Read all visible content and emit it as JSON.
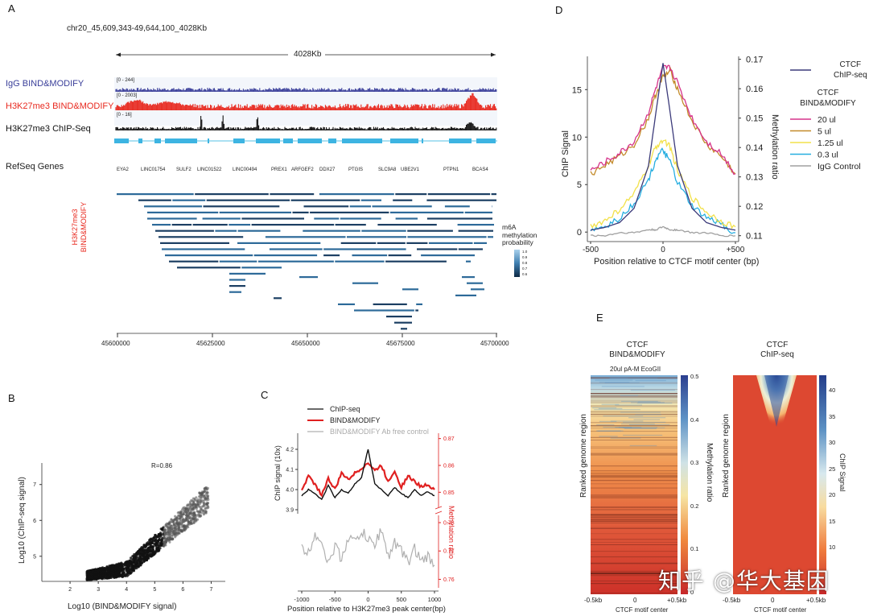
{
  "panels": {
    "A": {
      "letter": "A",
      "region": "chr20_45,609,343-49,644,100_4028Kb",
      "span_label": "4028Kb",
      "tracks": [
        {
          "label": "IgG BIND&MODIFY",
          "color": "#3a3f9a",
          "scale": "[0 - 244]"
        },
        {
          "label": "H3K27me3 BIND&MODIFY",
          "color": "#e8281e",
          "scale": "[0 - 2003]"
        },
        {
          "label": "H3K27me3 ChIP-Seq",
          "color": "#111111",
          "scale": "[0 - 16]"
        }
      ],
      "refseq_label": "RefSeq Genes",
      "genes": [
        "EYA2",
        "LINC01754",
        "SULF2",
        "LINC01522",
        "LINC00494",
        "PREX1",
        "ARFGEF2",
        "DDX27",
        "PTGIS",
        "SLC9A8",
        "UBE2V1",
        "PTPN1",
        "BCAS4"
      ],
      "reads_label_line1": "H3K27me3",
      "reads_label_line2": "BIND&MODIFY",
      "legend_title": [
        "m6A",
        "methylation",
        "probability"
      ],
      "legend_ticks": [
        "1.0",
        "0.9",
        "0.8",
        "0.7",
        "0.6"
      ],
      "axis_ticks": [
        "45600000",
        "45625000",
        "45650000",
        "45675000",
        "45700000"
      ]
    },
    "B": {
      "letter": "B",
      "r_label": "R=0.86",
      "xlabel": "Log10 (BIND&MODIFY signal)",
      "ylabel": "Log10 (ChIP-seq signal)"
    },
    "C": {
      "letter": "C",
      "xlabel": "Position relative to H3K27me3 peak center(bp)",
      "ylabel_left": "ChIP signal (10x)",
      "ylabel_right": "Methylation ratio"
    },
    "D": {
      "letter": "D",
      "xlabel": "Position relative to CTCF motif center (bp)",
      "ylabel_left": "ChIP Signal",
      "ylabel_right": "Methylation ratio",
      "legend_chip_title": [
        "CTCF",
        "ChIP-seq"
      ],
      "legend_bm_title": [
        "CTCF",
        "BIND&MODIFY"
      ]
    },
    "E": {
      "letter": "E",
      "left_title": [
        "CTCF",
        "BIND&MODIFY"
      ],
      "left_subtitle": "20ul pA-M EcoGII",
      "left_ylabel": "Ranked genome region",
      "left_cbar_label": "Methylation ratio",
      "left_cbar_ticks": [
        "0.5",
        "0.4",
        "0.3",
        "0.2",
        "0.1",
        "0"
      ],
      "right_title": [
        "CTCF",
        "ChIP-seq"
      ],
      "right_ylabel": "Ranked genome region",
      "right_cbar_label": "ChIP Signal",
      "right_cbar_ticks": [
        "40",
        "35",
        "30",
        "25",
        "20",
        "15",
        "10"
      ],
      "xticks": [
        "-0.5kb",
        "0",
        "+0.5kb"
      ],
      "xlabel": "CTCF motif center"
    }
  },
  "watermark": "知乎 @华大基因",
  "chart_data": [
    {
      "id": "B",
      "type": "scatter",
      "title": "",
      "xlabel": "Log10 (BIND&MODIFY signal)",
      "ylabel": "Log10 (ChIP-seq signal)",
      "xlim": [
        1,
        7.5
      ],
      "ylim": [
        4.3,
        7.6
      ],
      "xticks": [
        2,
        3,
        4,
        5,
        6,
        7
      ],
      "yticks": [
        5,
        6,
        7
      ],
      "annotation": "R=0.86",
      "trend": {
        "x": [
          2.5,
          3.5,
          4.5,
          5.5,
          6.5
        ],
        "y": [
          4.55,
          4.7,
          5.05,
          5.7,
          6.6
        ]
      }
    },
    {
      "id": "C",
      "type": "line",
      "xlabel": "Position relative to H3K27me3 peak center(bp)",
      "xlim": [
        -1000,
        1000
      ],
      "xticks": [
        -1000,
        -500,
        0,
        500,
        1000
      ],
      "left_axis": {
        "label": "ChIP signal (10x)",
        "ylim": [
          3.9,
          4.25
        ],
        "ticks": [
          3.9,
          4.0,
          4.1,
          4.2
        ]
      },
      "right_axis": {
        "label": "Methylation ratio",
        "upper_ticks": [
          0.85,
          0.86,
          0.87
        ],
        "lower_ticks": [
          0.76,
          0.77,
          0.78
        ]
      },
      "series": [
        {
          "name": "ChIP-seq",
          "color": "#111111",
          "axis": "left",
          "x": [
            -1000,
            -900,
            -800,
            -700,
            -600,
            -500,
            -400,
            -300,
            -200,
            -100,
            0,
            100,
            200,
            300,
            400,
            500,
            600,
            700,
            800,
            900,
            1000
          ],
          "y": [
            3.97,
            4.0,
            3.98,
            3.95,
            4.02,
            3.96,
            4.0,
            3.98,
            4.03,
            4.06,
            4.2,
            4.03,
            4.0,
            3.97,
            4.01,
            3.98,
            3.96,
            4.0,
            3.97,
            3.99,
            3.97
          ]
        },
        {
          "name": "BIND&MODIFY",
          "color": "#e02020",
          "axis": "right-upper",
          "x": [
            -1000,
            -900,
            -800,
            -700,
            -600,
            -500,
            -400,
            -300,
            -200,
            -100,
            0,
            100,
            200,
            300,
            400,
            500,
            600,
            700,
            800,
            900,
            1000
          ],
          "y": [
            0.851,
            0.856,
            0.853,
            0.849,
            0.855,
            0.851,
            0.857,
            0.855,
            0.857,
            0.859,
            0.861,
            0.858,
            0.86,
            0.854,
            0.858,
            0.852,
            0.856,
            0.854,
            0.852,
            0.853,
            0.851
          ]
        },
        {
          "name": "BIND&MODIFY Ab free control",
          "color": "#b0b0b0",
          "axis": "right-lower",
          "x": [
            -1000,
            -900,
            -800,
            -700,
            -600,
            -500,
            -400,
            -300,
            -200,
            -100,
            0,
            100,
            200,
            300,
            400,
            500,
            600,
            700,
            800,
            900,
            1000
          ],
          "y": [
            0.771,
            0.769,
            0.776,
            0.774,
            0.765,
            0.772,
            0.767,
            0.775,
            0.773,
            0.777,
            0.774,
            0.772,
            0.778,
            0.768,
            0.773,
            0.77,
            0.766,
            0.771,
            0.766,
            0.768,
            0.765
          ]
        }
      ]
    },
    {
      "id": "D",
      "type": "line",
      "xlabel": "Position relative to CTCF motif center (bp)",
      "xlim": [
        -500,
        500
      ],
      "xticks": [
        "-500",
        "0",
        "+500"
      ],
      "left_axis": {
        "label": "ChIP Signal",
        "ylim": [
          -1,
          18.5
        ],
        "ticks": [
          0,
          5,
          10,
          15
        ]
      },
      "right_axis": {
        "label": "Methylation ratio",
        "ylim": [
          0.108,
          0.171
        ],
        "ticks": [
          0.11,
          0.12,
          0.13,
          0.14,
          0.15,
          0.16,
          0.17
        ]
      },
      "series": [
        {
          "name": "CTCF ChIP-seq",
          "color": "#3b3a7a",
          "axis": "left",
          "x": [
            -500,
            -400,
            -300,
            -200,
            -100,
            -50,
            0,
            50,
            100,
            200,
            300,
            400,
            500
          ],
          "y": [
            0.2,
            0.5,
            1.0,
            2.5,
            7.0,
            12.5,
            17.8,
            12.5,
            7.0,
            2.5,
            1.0,
            0.5,
            0.2
          ]
        },
        {
          "name": "20 ul",
          "color": "#d6338a",
          "axis": "right",
          "x": [
            -500,
            -400,
            -300,
            -200,
            -100,
            -50,
            0,
            50,
            100,
            200,
            300,
            400,
            500
          ],
          "y": [
            0.132,
            0.135,
            0.138,
            0.142,
            0.152,
            0.16,
            0.167,
            0.167,
            0.162,
            0.15,
            0.142,
            0.138,
            0.131
          ]
        },
        {
          "name": "5 ul",
          "color": "#c38a2a",
          "axis": "right",
          "x": [
            -500,
            -400,
            -300,
            -200,
            -100,
            -50,
            0,
            50,
            100,
            200,
            300,
            400,
            500
          ],
          "y": [
            0.131,
            0.134,
            0.137,
            0.141,
            0.15,
            0.158,
            0.164,
            0.166,
            0.16,
            0.149,
            0.141,
            0.137,
            0.131
          ]
        },
        {
          "name": "1.25 ul",
          "color": "#f2e14a",
          "axis": "right",
          "x": [
            -500,
            -400,
            -300,
            -200,
            -100,
            -50,
            0,
            50,
            100,
            200,
            300,
            400,
            500
          ],
          "y": [
            0.113,
            0.115,
            0.119,
            0.124,
            0.134,
            0.14,
            0.143,
            0.14,
            0.132,
            0.123,
            0.118,
            0.115,
            0.113
          ]
        },
        {
          "name": "0.3 ul",
          "color": "#27aee0",
          "axis": "right",
          "x": [
            -500,
            -400,
            -300,
            -200,
            -100,
            -50,
            0,
            50,
            100,
            200,
            300,
            400,
            500
          ],
          "y": [
            0.112,
            0.113,
            0.116,
            0.121,
            0.129,
            0.136,
            0.139,
            0.135,
            0.128,
            0.12,
            0.116,
            0.114,
            0.111
          ]
        },
        {
          "name": "IgG Control",
          "color": "#a0a0a0",
          "axis": "right",
          "x": [
            -500,
            -400,
            -300,
            -200,
            -100,
            -50,
            0,
            50,
            100,
            200,
            300,
            400,
            500
          ],
          "y": [
            0.11,
            0.11,
            0.111,
            0.111,
            0.112,
            0.112,
            0.113,
            0.112,
            0.112,
            0.111,
            0.111,
            0.11,
            0.11
          ]
        }
      ]
    },
    {
      "id": "E-left",
      "type": "heatmap",
      "title": "CTCF BIND&MODIFY",
      "subtitle": "20ul pA-M EcoGII",
      "xlabel": "CTCF motif center",
      "ylabel": "Ranked genome region",
      "xticks": [
        "-0.5kb",
        "0",
        "+0.5kb"
      ],
      "colorbar": {
        "label": "Methylation ratio",
        "range": [
          0,
          0.5
        ],
        "ticks": [
          0,
          0.1,
          0.2,
          0.3,
          0.4,
          0.5
        ]
      }
    },
    {
      "id": "E-right",
      "type": "heatmap",
      "title": "CTCF ChIP-seq",
      "xlabel": "CTCF motif center",
      "ylabel": "Ranked genome region",
      "xticks": [
        "-0.5kb",
        "0",
        "+0.5kb"
      ],
      "colorbar": {
        "label": "ChIP Signal",
        "range": [
          5,
          43
        ],
        "ticks": [
          10,
          15,
          20,
          25,
          30,
          35,
          40
        ]
      }
    }
  ]
}
